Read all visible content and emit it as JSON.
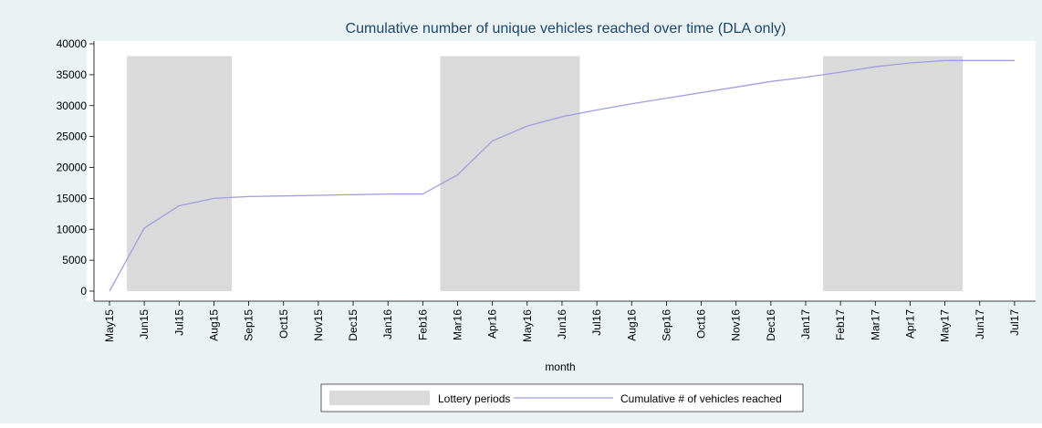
{
  "chart_data": {
    "type": "line",
    "title": "Cumulative number of unique vehicles reached over time (DLA only)",
    "x_label": "month",
    "categories": [
      "May15",
      "Jun15",
      "Jul15",
      "Aug15",
      "Sep15",
      "Oct15",
      "Nov15",
      "Dec15",
      "Jan16",
      "Feb16",
      "Mar16",
      "Apr16",
      "May16",
      "Jun16",
      "Jul16",
      "Aug16",
      "Sep16",
      "Oct16",
      "Nov16",
      "Dec16",
      "Jan17",
      "Feb17",
      "Mar17",
      "Apr17",
      "May17",
      "Jun17",
      "Jul17"
    ],
    "series": [
      {
        "name": "Lottery periods",
        "type": "bar",
        "color": "#dadada",
        "values": [
          null,
          38000,
          38000,
          38000,
          null,
          null,
          null,
          null,
          null,
          null,
          38000,
          38000,
          38000,
          38000,
          null,
          null,
          null,
          null,
          null,
          null,
          null,
          38000,
          38000,
          38000,
          38000,
          null,
          null
        ]
      },
      {
        "name": "Cumulative # of vehicles reached",
        "type": "line",
        "color": "#9f9fdf",
        "values": [
          0,
          10200,
          13800,
          15000,
          15300,
          15400,
          15500,
          15600,
          15700,
          15700,
          18800,
          24300,
          26700,
          28200,
          29300,
          30300,
          31200,
          32100,
          33000,
          33900,
          34600,
          35400,
          36300,
          36900,
          37300,
          37300,
          37300
        ]
      }
    ],
    "ylim": [
      0,
      40000
    ],
    "yticks": [
      0,
      5000,
      10000,
      15000,
      20000,
      25000,
      30000,
      35000,
      40000
    ],
    "grid": false,
    "legend": "bottom"
  }
}
